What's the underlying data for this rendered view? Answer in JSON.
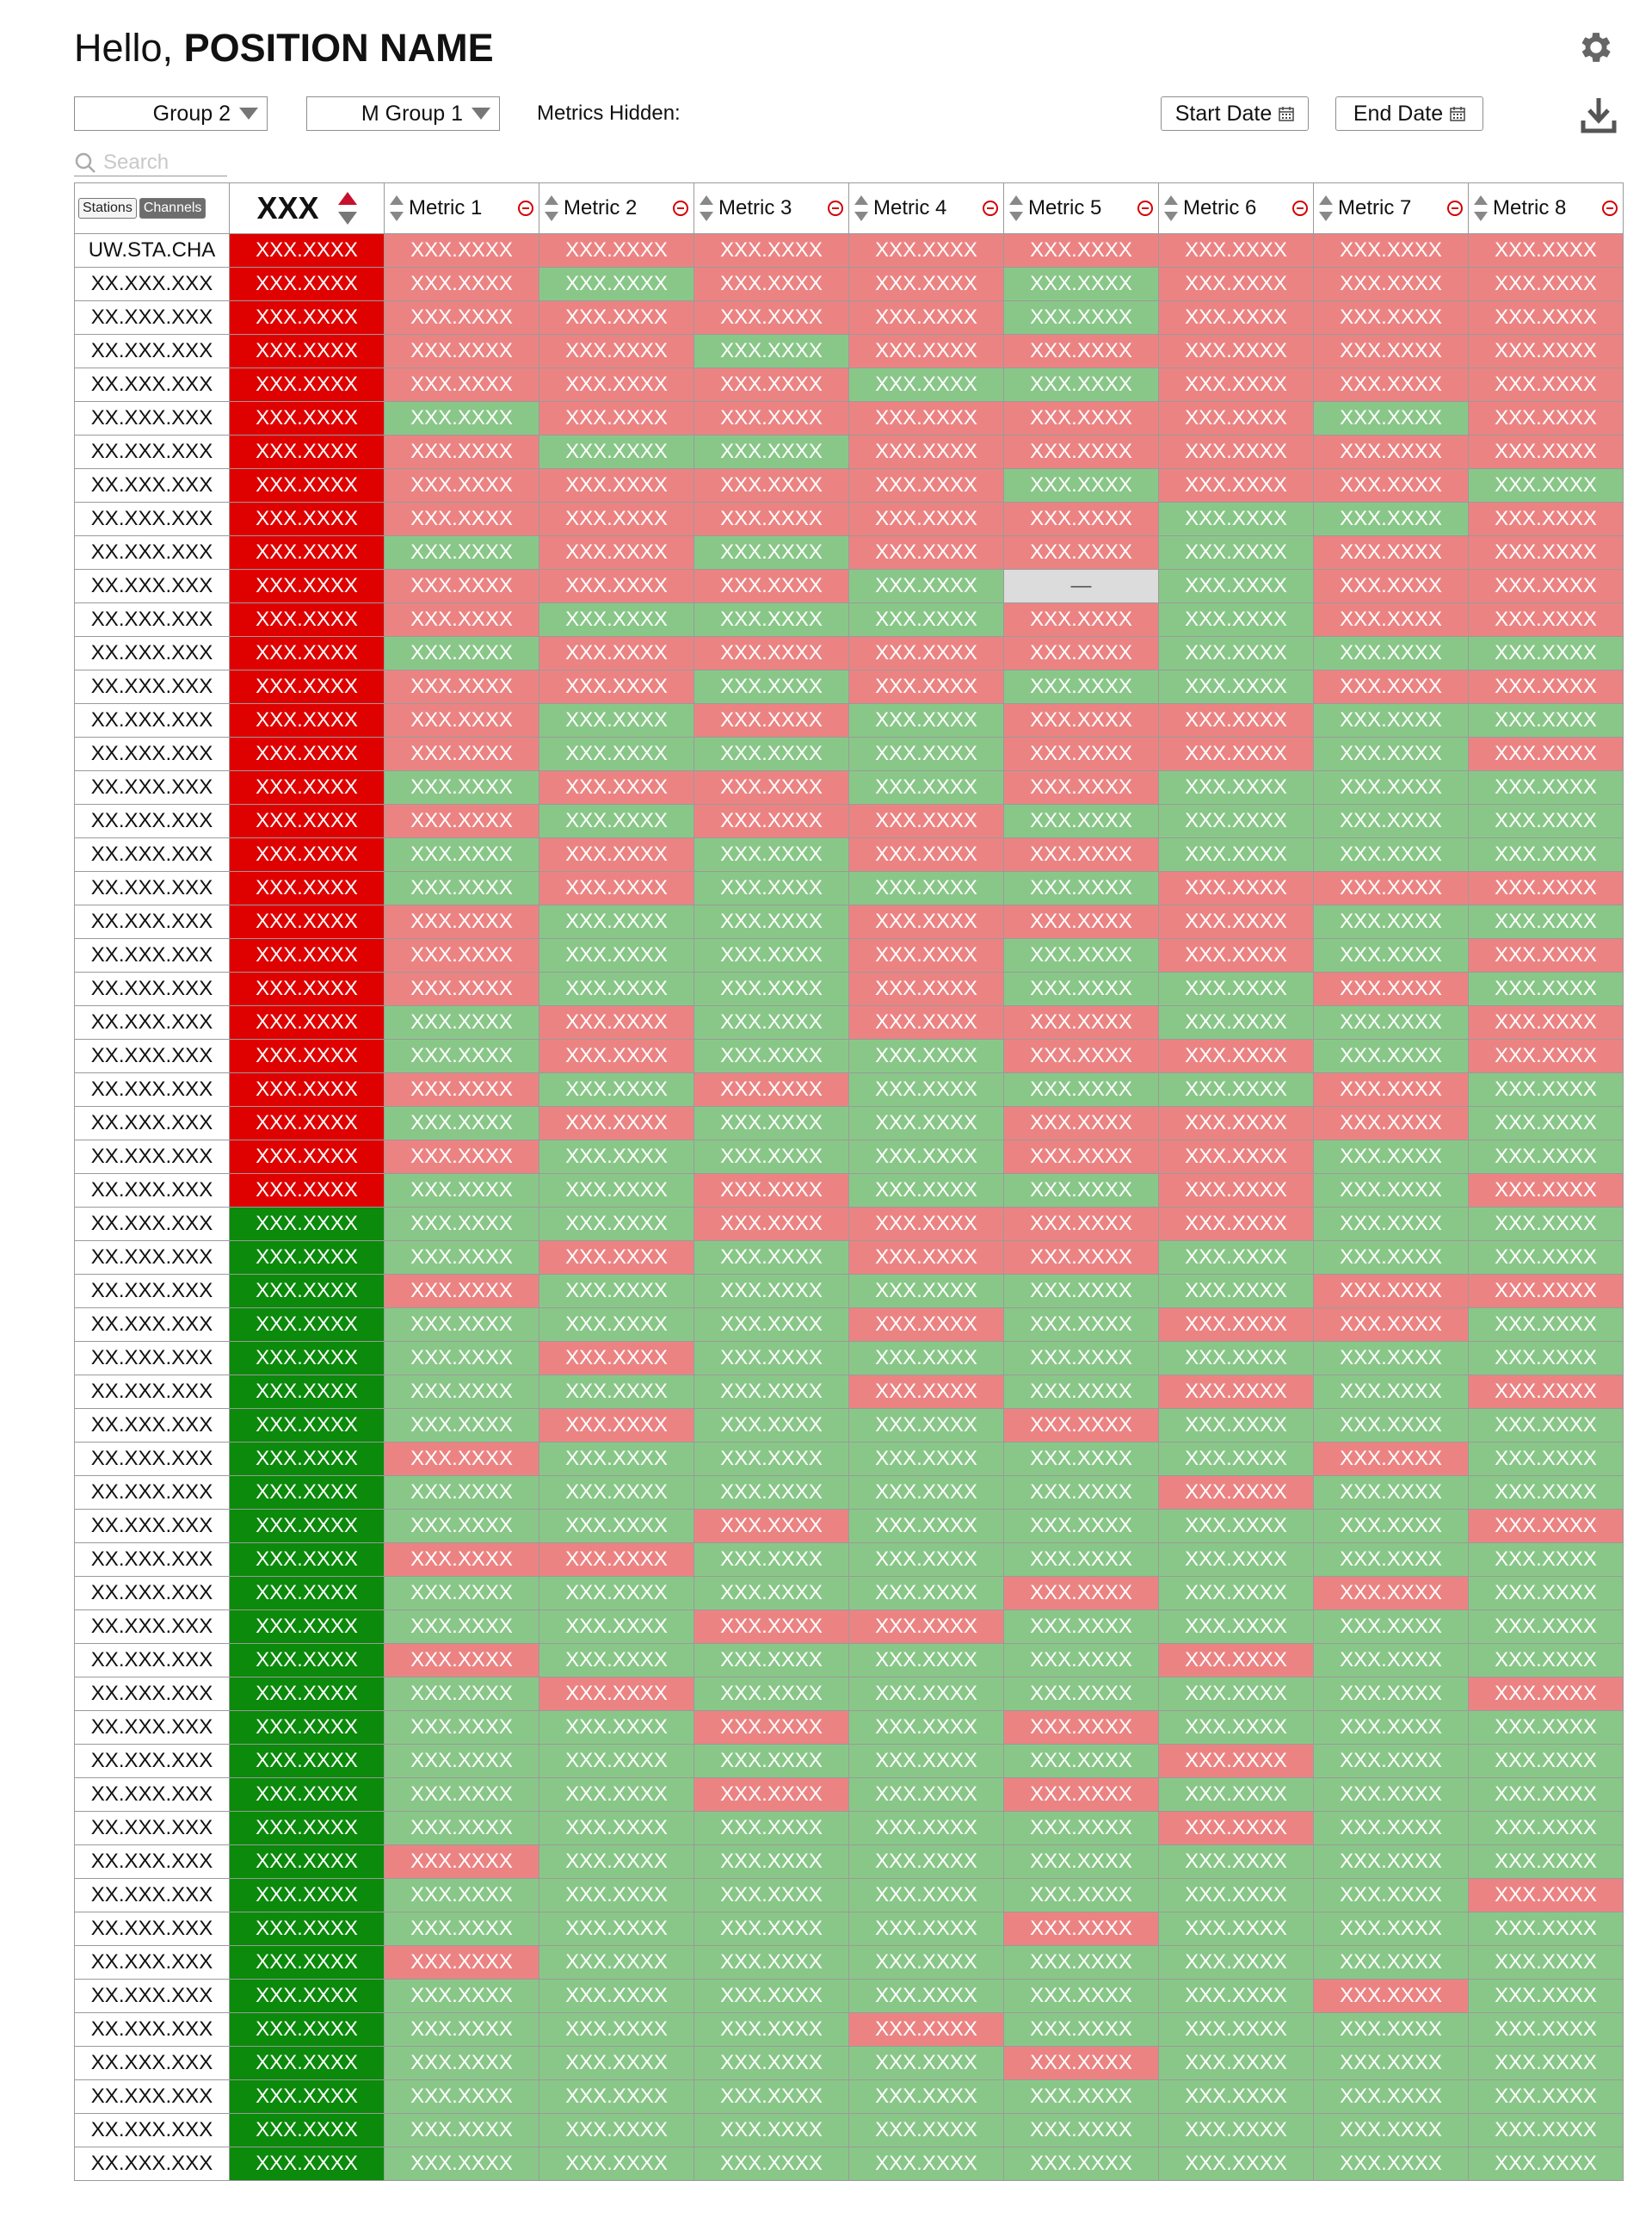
{
  "header": {
    "greeting": "Hello,",
    "position_name": "POSITION NAME",
    "settings_icon": "gear-icon"
  },
  "filters": {
    "group_select": "Group 2",
    "metric_group_select": "M Group 1",
    "metrics_hidden_label": "Metrics Hidden:",
    "start_date_label": "Start Date",
    "end_date_label": "End Date",
    "download_icon": "download-icon"
  },
  "search": {
    "placeholder": "Search",
    "value": ""
  },
  "table": {
    "toggle": {
      "stations": "Stations",
      "channels": "Channels",
      "active": "channels"
    },
    "key_header": "XXX",
    "metric_headers": [
      "Metric 1",
      "Metric 2",
      "Metric 3",
      "Metric 4",
      "Metric 5",
      "Metric 6",
      "Metric 7",
      "Metric 8"
    ],
    "cell_value": "XXX.XXXX",
    "na_value": "—",
    "colors": {
      "fail_dark": "#df0000",
      "pass_dark": "#0b8a0b",
      "fail_light": "#ec8383",
      "pass_light": "#89c788",
      "na": "#dcdcdc"
    },
    "rows": [
      {
        "name": "UW.STA.CHA",
        "status": "R",
        "metrics": "rrrrrrrr"
      },
      {
        "name": "XX.XXX.XXX",
        "status": "R",
        "metrics": "rgrrgrrr"
      },
      {
        "name": "XX.XXX.XXX",
        "status": "R",
        "metrics": "rrrrgrrr"
      },
      {
        "name": "XX.XXX.XXX",
        "status": "R",
        "metrics": "rrgrrrrr"
      },
      {
        "name": "XX.XXX.XXX",
        "status": "R",
        "metrics": "rrrggrrr"
      },
      {
        "name": "XX.XXX.XXX",
        "status": "R",
        "metrics": "grrrrrgr"
      },
      {
        "name": "XX.XXX.XXX",
        "status": "R",
        "metrics": "rggrrrrr"
      },
      {
        "name": "XX.XXX.XXX",
        "status": "R",
        "metrics": "rrrrgrrg"
      },
      {
        "name": "XX.XXX.XXX",
        "status": "R",
        "metrics": "rrrrrggr"
      },
      {
        "name": "XX.XXX.XXX",
        "status": "R",
        "metrics": "grgrrgrr"
      },
      {
        "name": "XX.XXX.XXX",
        "status": "R",
        "metrics": "rrrgngrr"
      },
      {
        "name": "XX.XXX.XXX",
        "status": "R",
        "metrics": "rgggrgrr"
      },
      {
        "name": "XX.XXX.XXX",
        "status": "R",
        "metrics": "grrrrggg"
      },
      {
        "name": "XX.XXX.XXX",
        "status": "R",
        "metrics": "rrgrggrr"
      },
      {
        "name": "XX.XXX.XXX",
        "status": "R",
        "metrics": "rgrgrrgg"
      },
      {
        "name": "XX.XXX.XXX",
        "status": "R",
        "metrics": "rgggrrgr"
      },
      {
        "name": "XX.XXX.XXX",
        "status": "R",
        "metrics": "grrgrggg"
      },
      {
        "name": "XX.XXX.XXX",
        "status": "R",
        "metrics": "rgrrgggg"
      },
      {
        "name": "XX.XXX.XXX",
        "status": "R",
        "metrics": "grgrrggg"
      },
      {
        "name": "XX.XXX.XXX",
        "status": "R",
        "metrics": "grgggrrr"
      },
      {
        "name": "XX.XXX.XXX",
        "status": "R",
        "metrics": "rggrrrgg"
      },
      {
        "name": "XX.XXX.XXX",
        "status": "R",
        "metrics": "rggrgrgr"
      },
      {
        "name": "XX.XXX.XXX",
        "status": "R",
        "metrics": "rggrggrg"
      },
      {
        "name": "XX.XXX.XXX",
        "status": "R",
        "metrics": "grgrrggr"
      },
      {
        "name": "XX.XXX.XXX",
        "status": "R",
        "metrics": "grggrrgr"
      },
      {
        "name": "XX.XXX.XXX",
        "status": "R",
        "metrics": "rgrgggrg"
      },
      {
        "name": "XX.XXX.XXX",
        "status": "R",
        "metrics": "grggrrrg"
      },
      {
        "name": "XX.XXX.XXX",
        "status": "R",
        "metrics": "rgggrrgg"
      },
      {
        "name": "XX.XXX.XXX",
        "status": "R",
        "metrics": "ggrggrgr"
      },
      {
        "name": "XX.XXX.XXX",
        "status": "G",
        "metrics": "ggrrrrgg"
      },
      {
        "name": "XX.XXX.XXX",
        "status": "G",
        "metrics": "grgrrggg"
      },
      {
        "name": "XX.XXX.XXX",
        "status": "G",
        "metrics": "rgggggrr"
      },
      {
        "name": "XX.XXX.XXX",
        "status": "G",
        "metrics": "gggrgrrg"
      },
      {
        "name": "XX.XXX.XXX",
        "status": "G",
        "metrics": "grgggggg"
      },
      {
        "name": "XX.XXX.XXX",
        "status": "G",
        "metrics": "gggrgrgr"
      },
      {
        "name": "XX.XXX.XXX",
        "status": "G",
        "metrics": "grggrggg"
      },
      {
        "name": "XX.XXX.XXX",
        "status": "G",
        "metrics": "rgggggrg"
      },
      {
        "name": "XX.XXX.XXX",
        "status": "G",
        "metrics": "gggggrgg"
      },
      {
        "name": "XX.XXX.XXX",
        "status": "G",
        "metrics": "ggrggggr"
      },
      {
        "name": "XX.XXX.XXX",
        "status": "G",
        "metrics": "rrgggggg"
      },
      {
        "name": "XX.XXX.XXX",
        "status": "G",
        "metrics": "ggggrgrg"
      },
      {
        "name": "XX.XXX.XXX",
        "status": "G",
        "metrics": "ggrrgggg"
      },
      {
        "name": "XX.XXX.XXX",
        "status": "G",
        "metrics": "rggggrgg"
      },
      {
        "name": "XX.XXX.XXX",
        "status": "G",
        "metrics": "grgggggr"
      },
      {
        "name": "XX.XXX.XXX",
        "status": "G",
        "metrics": "ggrgrggg"
      },
      {
        "name": "XX.XXX.XXX",
        "status": "G",
        "metrics": "gggggrgg"
      },
      {
        "name": "XX.XXX.XXX",
        "status": "G",
        "metrics": "ggrgrggg"
      },
      {
        "name": "XX.XXX.XXX",
        "status": "G",
        "metrics": "gggggrgg"
      },
      {
        "name": "XX.XXX.XXX",
        "status": "G",
        "metrics": "rggggggg"
      },
      {
        "name": "XX.XXX.XXX",
        "status": "G",
        "metrics": "gggggggr"
      },
      {
        "name": "XX.XXX.XXX",
        "status": "G",
        "metrics": "ggggrggg"
      },
      {
        "name": "XX.XXX.XXX",
        "status": "G",
        "metrics": "rggggggg"
      },
      {
        "name": "XX.XXX.XXX",
        "status": "G",
        "metrics": "ggggggrg"
      },
      {
        "name": "XX.XXX.XXX",
        "status": "G",
        "metrics": "gggrgggg"
      },
      {
        "name": "XX.XXX.XXX",
        "status": "G",
        "metrics": "ggggrggg"
      },
      {
        "name": "XX.XXX.XXX",
        "status": "G",
        "metrics": "gggggggg"
      },
      {
        "name": "XX.XXX.XXX",
        "status": "G",
        "metrics": "gggggggg"
      },
      {
        "name": "XX.XXX.XXX",
        "status": "G",
        "metrics": "gggggggg"
      }
    ]
  }
}
